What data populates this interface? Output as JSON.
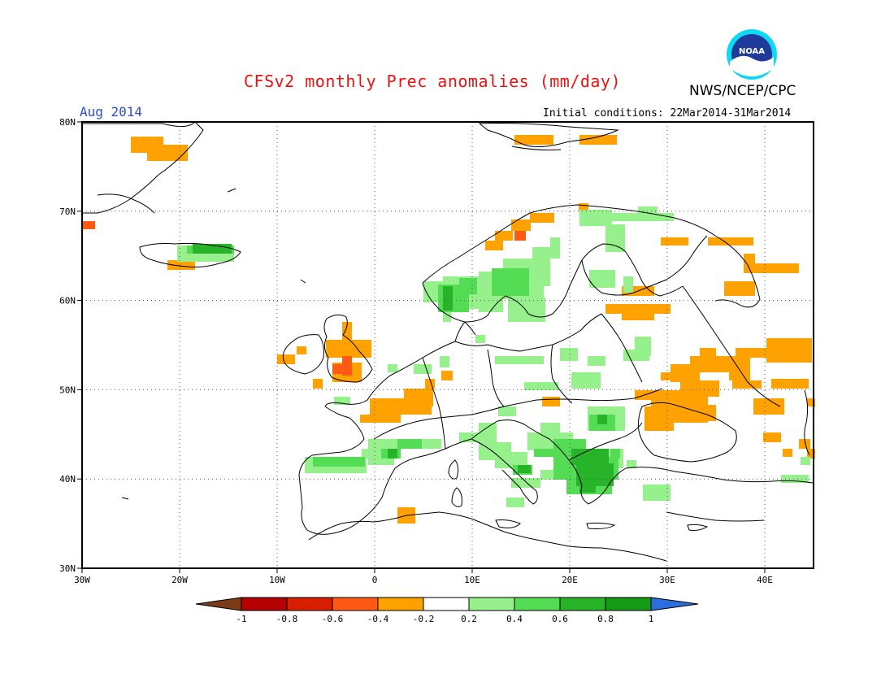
{
  "header": {
    "title": "CFSv2 monthly Prec anomalies (mm/day)",
    "agency": "NWS/NCEP/CPC",
    "logo_text": "NOAA",
    "valid_month": "Aug 2014",
    "initial_conditions": "Initial conditions: 22Mar2014-31Mar2014"
  },
  "map": {
    "lon_range": [
      -30,
      45
    ],
    "lat_range": [
      30,
      80
    ],
    "lat_ticks": [
      "30N",
      "40N",
      "50N",
      "60N",
      "70N",
      "80N"
    ],
    "lon_ticks": [
      "30W",
      "20W",
      "10W",
      "0",
      "10E",
      "20E",
      "30E",
      "40E"
    ],
    "grid": "dotted"
  },
  "colorbar": {
    "labels": [
      "-1",
      "-0.8",
      "-0.6",
      "-0.4",
      "-0.2",
      "0.2",
      "0.4",
      "0.6",
      "0.8",
      "1"
    ],
    "colors": [
      "#7a3b16",
      "#b50000",
      "#d91e00",
      "#ff5a14",
      "#ffa200",
      "#ffffff",
      "#96f08c",
      "#55dc55",
      "#28b428",
      "#149a14",
      "#2a6edc"
    ]
  },
  "colors": {
    "orange": "#ffa200",
    "red": "#ff5a14",
    "light_green": "#96f08c",
    "green": "#55dc55",
    "dark_green": "#28b428",
    "darkest_green": "#149a14"
  }
}
